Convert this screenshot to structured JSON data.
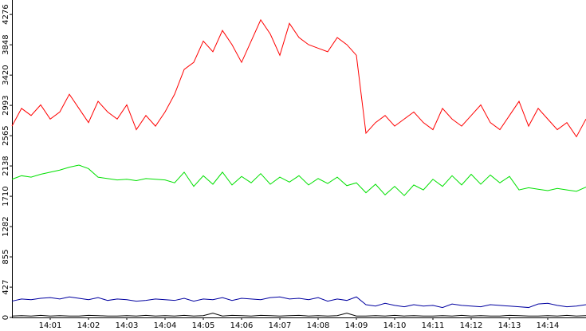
{
  "chart_data": {
    "type": "line",
    "x": [
      840,
      840.25,
      840.5,
      840.75,
      841,
      841.25,
      841.5,
      841.75,
      842,
      842.25,
      842.5,
      842.75,
      843,
      843.25,
      843.5,
      843.75,
      844,
      844.25,
      844.5,
      844.75,
      845,
      845.25,
      845.5,
      845.75,
      846,
      846.25,
      846.5,
      846.75,
      847,
      847.25,
      847.5,
      847.75,
      848,
      848.25,
      848.5,
      848.75,
      849,
      849.25,
      849.5,
      849.75,
      850,
      850.25,
      850.5,
      850.75,
      851,
      851.25,
      851.5,
      851.75,
      852,
      852.25,
      852.5,
      852.75,
      853,
      853.25,
      853.5,
      853.75,
      854,
      854.25,
      854.5,
      854.75,
      855
    ],
    "xlim": [
      840,
      855
    ],
    "xticks": [
      {
        "value": 841,
        "label": "14:01"
      },
      {
        "value": 842,
        "label": "14:02"
      },
      {
        "value": 843,
        "label": "14:03"
      },
      {
        "value": 844,
        "label": "14:04"
      },
      {
        "value": 845,
        "label": "14:05"
      },
      {
        "value": 846,
        "label": "14:06"
      },
      {
        "value": 847,
        "label": "14:07"
      },
      {
        "value": 848,
        "label": "14:08"
      },
      {
        "value": 849,
        "label": "14:09"
      },
      {
        "value": 850,
        "label": "14:10"
      },
      {
        "value": 851,
        "label": "14:11"
      },
      {
        "value": 852,
        "label": "14:12"
      },
      {
        "value": 853,
        "label": "14:13"
      },
      {
        "value": 854,
        "label": "14:14"
      }
    ],
    "ylim": [
      0,
      4480
    ],
    "yticks": [
      0,
      427,
      855,
      1282,
      1710,
      2138,
      2565,
      2993,
      3420,
      3848,
      4276
    ],
    "series": [
      {
        "color": "#ff0000",
        "values": [
          2700,
          2950,
          2850,
          3000,
          2800,
          2900,
          3150,
          2950,
          2750,
          3050,
          2900,
          2800,
          3000,
          2650,
          2850,
          2700,
          2900,
          3150,
          3500,
          3600,
          3900,
          3750,
          4050,
          3850,
          3600,
          3900,
          4200,
          4000,
          3700,
          4150,
          3950,
          3850,
          3800,
          3750,
          3950,
          3850,
          3700,
          2600,
          2750,
          2850,
          2700,
          2800,
          2900,
          2750,
          2650,
          2950,
          2800,
          2700,
          2850,
          3000,
          2750,
          2650,
          2850,
          3050,
          2700,
          2950,
          2800,
          2650,
          2750,
          2550,
          2800
        ]
      },
      {
        "color": "#00e000",
        "values": [
          1950,
          2000,
          1980,
          2020,
          2050,
          2080,
          2120,
          2150,
          2100,
          1980,
          1960,
          1940,
          1950,
          1930,
          1960,
          1950,
          1940,
          1900,
          2050,
          1850,
          2000,
          1880,
          2050,
          1870,
          1990,
          1900,
          2030,
          1880,
          1980,
          1910,
          2000,
          1870,
          1960,
          1890,
          1980,
          1860,
          1900,
          1760,
          1880,
          1730,
          1850,
          1720,
          1870,
          1800,
          1950,
          1850,
          2000,
          1870,
          2020,
          1880,
          2010,
          1900,
          1990,
          1800,
          1830,
          1810,
          1790,
          1820,
          1800,
          1780,
          1840
        ]
      },
      {
        "color": "#0000a0",
        "values": [
          230,
          260,
          250,
          270,
          280,
          260,
          290,
          270,
          250,
          280,
          240,
          260,
          250,
          230,
          240,
          260,
          250,
          240,
          270,
          230,
          260,
          250,
          280,
          240,
          270,
          260,
          250,
          280,
          290,
          260,
          270,
          250,
          280,
          230,
          260,
          240,
          290,
          180,
          160,
          200,
          170,
          150,
          180,
          160,
          170,
          140,
          190,
          170,
          160,
          150,
          180,
          170,
          160,
          150,
          140,
          190,
          200,
          170,
          150,
          160,
          180
        ]
      },
      {
        "color": "#000000",
        "values": [
          20,
          25,
          20,
          30,
          20,
          25,
          20,
          20,
          30,
          25,
          20,
          20,
          25,
          20,
          30,
          20,
          25,
          20,
          30,
          20,
          25,
          60,
          20,
          30,
          25,
          20,
          30,
          25,
          20,
          25,
          30,
          20,
          25,
          20,
          25,
          60,
          20,
          20,
          25,
          20,
          30,
          20,
          25,
          20,
          20,
          25,
          20,
          30,
          20,
          25,
          20,
          20,
          30,
          25,
          20,
          20,
          25,
          20,
          30,
          20,
          25
        ]
      }
    ]
  }
}
